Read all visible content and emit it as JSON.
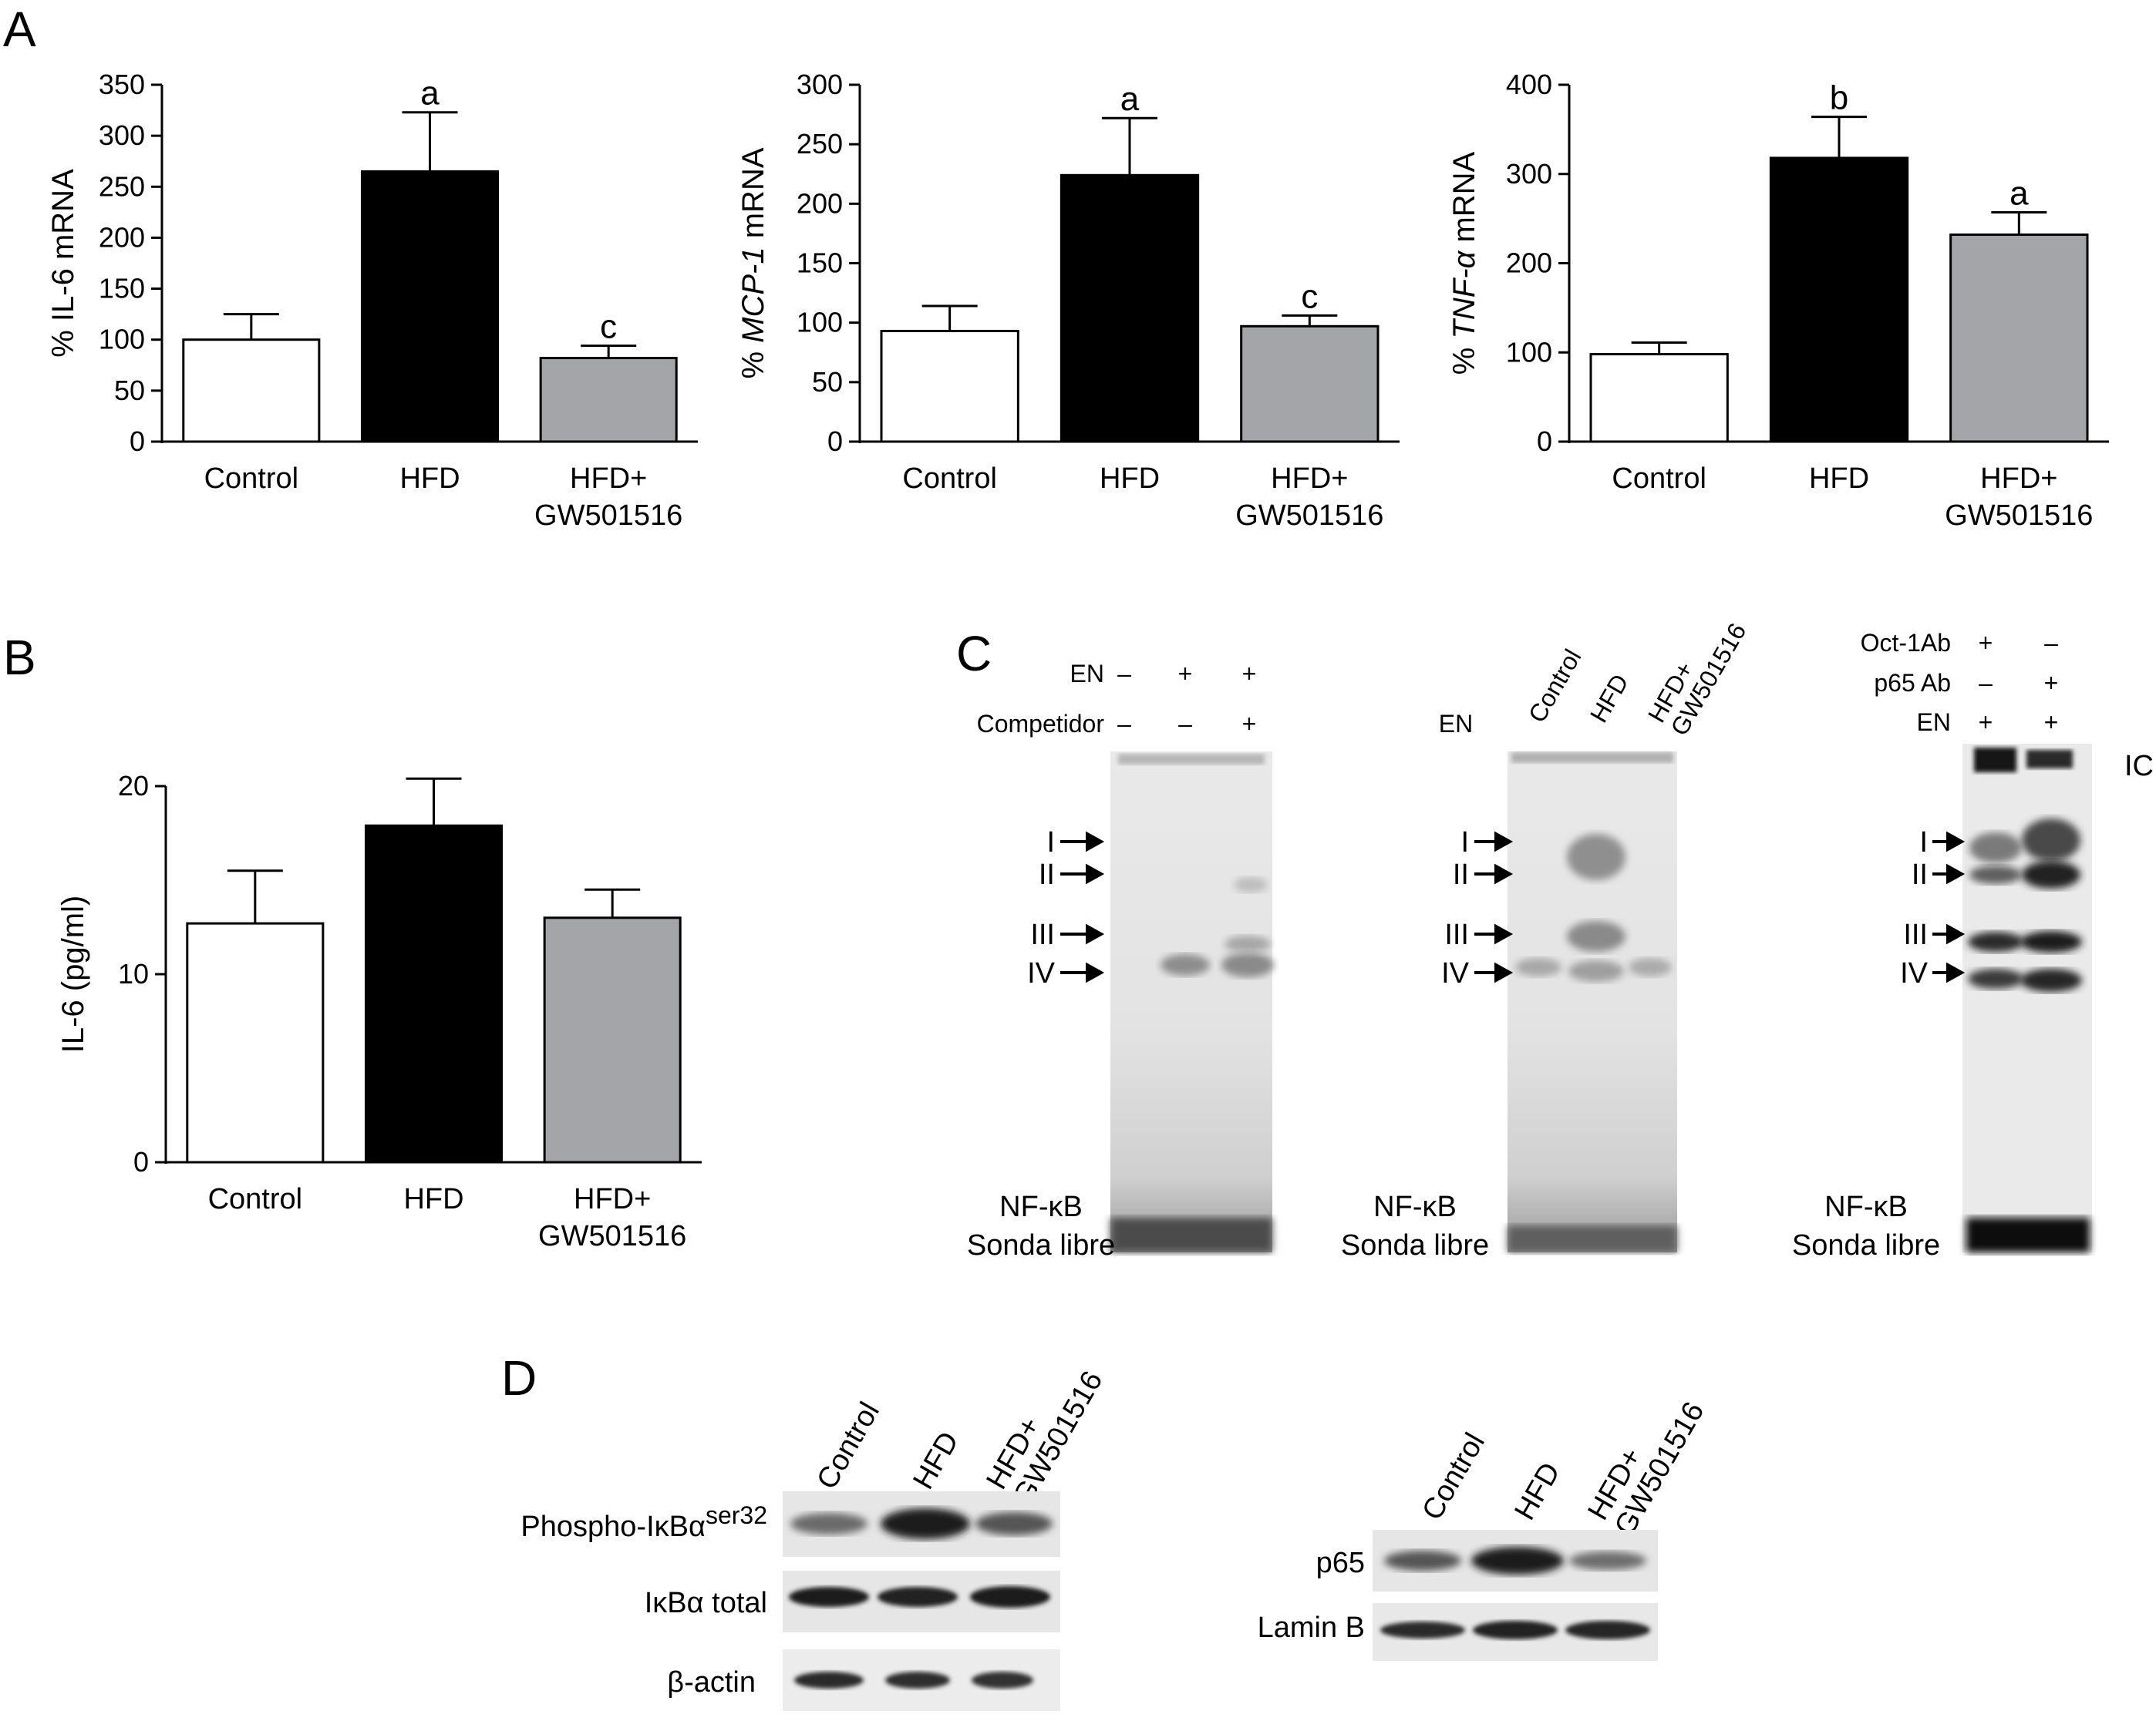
{
  "panels": {
    "A": "A",
    "B": "B",
    "C": "C",
    "D": "D"
  },
  "chart_data": [
    {
      "id": "A1",
      "type": "bar",
      "categories": [
        "Control",
        "HFD",
        "HFD+\nGW501516"
      ],
      "values": [
        100,
        265,
        82
      ],
      "errors": [
        25,
        58,
        12
      ],
      "significance": [
        "",
        "a",
        "c"
      ],
      "ylabel_prefix": "% ",
      "ylabel_gene": "IL-6",
      "ylabel_gene_italic": false,
      "ylabel_suffix": " mRNA",
      "ylim": [
        0,
        350
      ],
      "yticks": [
        0,
        50,
        100,
        150,
        200,
        250,
        300,
        350
      ],
      "bar_colors": [
        "#ffffff",
        "#000000",
        "#a3a5a8"
      ]
    },
    {
      "id": "A2",
      "type": "bar",
      "categories": [
        "Control",
        "HFD",
        "HFD+\nGW501516"
      ],
      "values": [
        93,
        224,
        97
      ],
      "errors": [
        21,
        48,
        9
      ],
      "significance": [
        "",
        "a",
        "c"
      ],
      "ylabel_prefix": "% ",
      "ylabel_gene": "MCP-1",
      "ylabel_gene_italic": true,
      "ylabel_suffix": " mRNA",
      "ylim": [
        0,
        300
      ],
      "yticks": [
        0,
        50,
        100,
        150,
        200,
        250,
        300
      ],
      "bar_colors": [
        "#ffffff",
        "#000000",
        "#a3a5a8"
      ]
    },
    {
      "id": "A3",
      "type": "bar",
      "categories": [
        "Control",
        "HFD",
        "HFD+\nGW501516"
      ],
      "values": [
        98,
        318,
        232
      ],
      "errors": [
        13,
        46,
        25
      ],
      "significance": [
        "",
        "b",
        "a"
      ],
      "ylabel_prefix": "% ",
      "ylabel_gene": "TNF-α",
      "ylabel_gene_italic": true,
      "ylabel_suffix": " mRNA",
      "ylim": [
        0,
        400
      ],
      "yticks": [
        0,
        100,
        200,
        300,
        400
      ],
      "bar_colors": [
        "#ffffff",
        "#000000",
        "#a3a5a8"
      ]
    },
    {
      "id": "B",
      "type": "bar",
      "categories": [
        "Control",
        "HFD",
        "HFD+\nGW501516"
      ],
      "values": [
        12.7,
        17.9,
        13.0
      ],
      "errors": [
        2.8,
        2.5,
        1.5
      ],
      "significance": [
        "",
        "",
        ""
      ],
      "ylabel_prefix": "",
      "ylabel_gene": "IL-6 (pg/ml)",
      "ylabel_gene_italic": false,
      "ylabel_suffix": "",
      "ylim": [
        0,
        20
      ],
      "yticks": [
        0,
        10,
        20
      ],
      "bar_colors": [
        "#ffffff",
        "#000000",
        "#a3a5a8"
      ]
    }
  ],
  "panelC": {
    "gel1": {
      "row_labels": [
        "EN",
        "Competidor"
      ],
      "row_values": [
        [
          "–",
          "+",
          "+"
        ],
        [
          "–",
          "–",
          "+"
        ]
      ],
      "bands": [
        "I",
        "II",
        "III",
        "IV"
      ],
      "bottom": [
        "NF-κB",
        "Sonda libre"
      ]
    },
    "gel2": {
      "en_label": "EN",
      "lanes": [
        "Control",
        "HFD",
        "HFD+\nGW501516"
      ],
      "bands": [
        "I",
        "II",
        "III",
        "IV"
      ],
      "bottom": [
        "NF-κB",
        "Sonda libre"
      ]
    },
    "gel3": {
      "row_labels": [
        "Oct-1Ab",
        "p65 Ab",
        "EN"
      ],
      "row_values": [
        [
          "+",
          "–"
        ],
        [
          "–",
          "+"
        ],
        [
          "+",
          "+"
        ]
      ],
      "ic_label": "IC",
      "bands": [
        "I",
        "II",
        "III",
        "IV"
      ],
      "bottom": [
        "NF-κB",
        "Sonda libre"
      ]
    }
  },
  "panelD": {
    "blot1": {
      "lanes": [
        "Control",
        "HFD",
        "HFD+\nGW501516"
      ],
      "rows": [
        {
          "label": "Phospho-IκBα",
          "sup": "ser32"
        },
        {
          "label": "IκBα total",
          "sup": ""
        },
        {
          "label": "β-actin",
          "sup": ""
        }
      ]
    },
    "blot2": {
      "lanes": [
        "Control",
        "HFD",
        "HFD+\nGW501516"
      ],
      "rows": [
        {
          "label": "p65",
          "sup": ""
        },
        {
          "label": "Lamin B",
          "sup": ""
        }
      ]
    }
  }
}
